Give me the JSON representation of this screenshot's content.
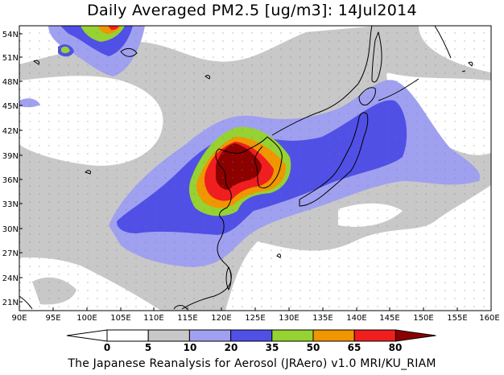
{
  "title": "Daily Averaged PM2.5 [ug/m3]: 14Jul2014",
  "footer": "The Japanese Reanalysis for Aerosol (JRAero) v1.0 MRI/KU_RIAM",
  "map": {
    "x_ticks": [
      "90E",
      "95E",
      "100E",
      "105E",
      "110E",
      "115E",
      "120E",
      "125E",
      "130E",
      "135E",
      "140E",
      "145E",
      "150E",
      "155E",
      "160E"
    ],
    "y_ticks": [
      "54N",
      "51N",
      "48N",
      "45N",
      "42N",
      "39N",
      "36N",
      "33N",
      "30N",
      "27N",
      "24N",
      "21N"
    ]
  },
  "colorbar": {
    "labels": [
      "0",
      "5",
      "10",
      "20",
      "35",
      "50",
      "65",
      "80"
    ],
    "colors": [
      "#ffffff",
      "#c8c8c8",
      "#a0a0f0",
      "#5050e6",
      "#96d232",
      "#f09600",
      "#f01e1e",
      "#8c0000"
    ]
  }
}
